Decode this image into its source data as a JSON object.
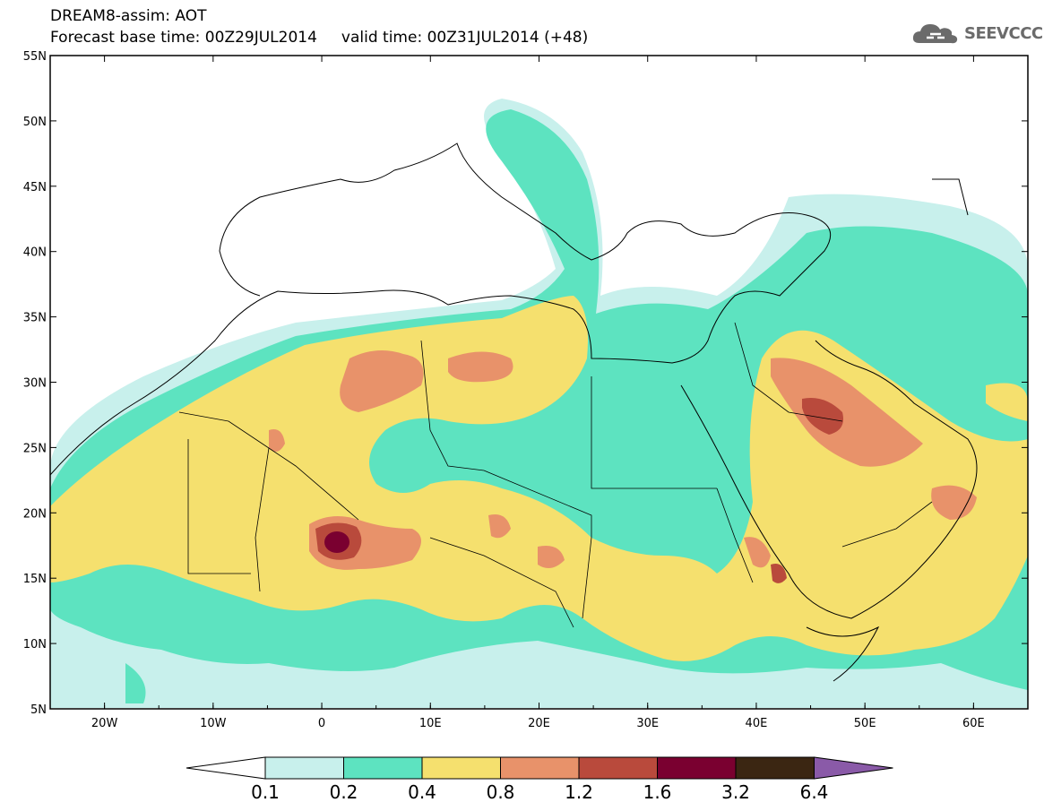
{
  "header": {
    "title_line1": "DREAM8-assim: AOT",
    "title_line2": "Forecast base time: 00Z29JUL2014     valid time: 00Z31JUL2014 (+48)",
    "logo_text": "SEEVCCC"
  },
  "map": {
    "lon_range": [
      -25,
      65
    ],
    "lat_range": [
      5,
      55
    ],
    "lon_ticks": [
      "20W",
      "10W",
      "0",
      "10E",
      "20E",
      "30E",
      "40E",
      "50E",
      "60E"
    ],
    "lat_ticks": [
      "5N",
      "10N",
      "15N",
      "20N",
      "25N",
      "30N",
      "35N",
      "40N",
      "45N",
      "50N",
      "55N"
    ]
  },
  "colorbar": {
    "labels": [
      "0.1",
      "0.2",
      "0.4",
      "0.8",
      "1.2",
      "1.6",
      "3.2",
      "6.4"
    ],
    "colors": [
      "#c8f0ec",
      "#5de3c0",
      "#f5e06e",
      "#e8926a",
      "#b94a3c",
      "#7a0030",
      "#3b2612"
    ],
    "low_extension_color": "#ffffff",
    "high_extension_color": "#8a5aa8"
  }
}
